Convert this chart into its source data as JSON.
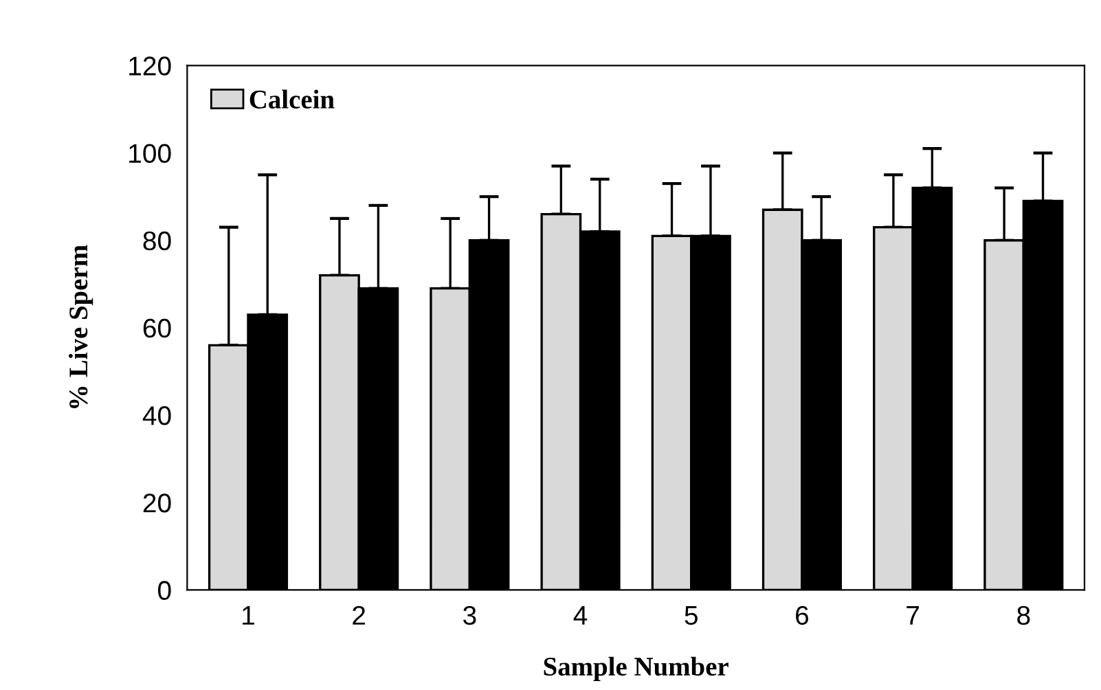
{
  "chart_data": {
    "type": "bar",
    "xlabel": "Sample Number",
    "ylabel": "% Live Sperm",
    "categories": [
      "1",
      "2",
      "3",
      "4",
      "5",
      "6",
      "7",
      "8"
    ],
    "series": [
      {
        "name": "Calcein",
        "color": "#d9d9d9",
        "values": [
          56,
          72,
          69,
          86,
          81,
          87,
          83,
          80
        ],
        "errors": [
          [
            56,
            83
          ],
          [
            72,
            85
          ],
          [
            69,
            85
          ],
          [
            86,
            97
          ],
          [
            81,
            93
          ],
          [
            87,
            100
          ],
          [
            83,
            95
          ],
          [
            80,
            92
          ]
        ]
      },
      {
        "color": "#000000",
        "values": [
          63,
          69,
          80,
          82,
          81,
          80,
          92,
          89
        ],
        "errors": [
          [
            63,
            95
          ],
          [
            69,
            88
          ],
          [
            80,
            90
          ],
          [
            82,
            94
          ],
          [
            81,
            97
          ],
          [
            80,
            90
          ],
          [
            92,
            101
          ],
          [
            89,
            100
          ]
        ]
      }
    ],
    "ylim": [
      0,
      120
    ],
    "yticks": [
      0,
      20,
      40,
      60,
      80,
      100,
      120
    ],
    "grid": false,
    "legend": "top left"
  }
}
